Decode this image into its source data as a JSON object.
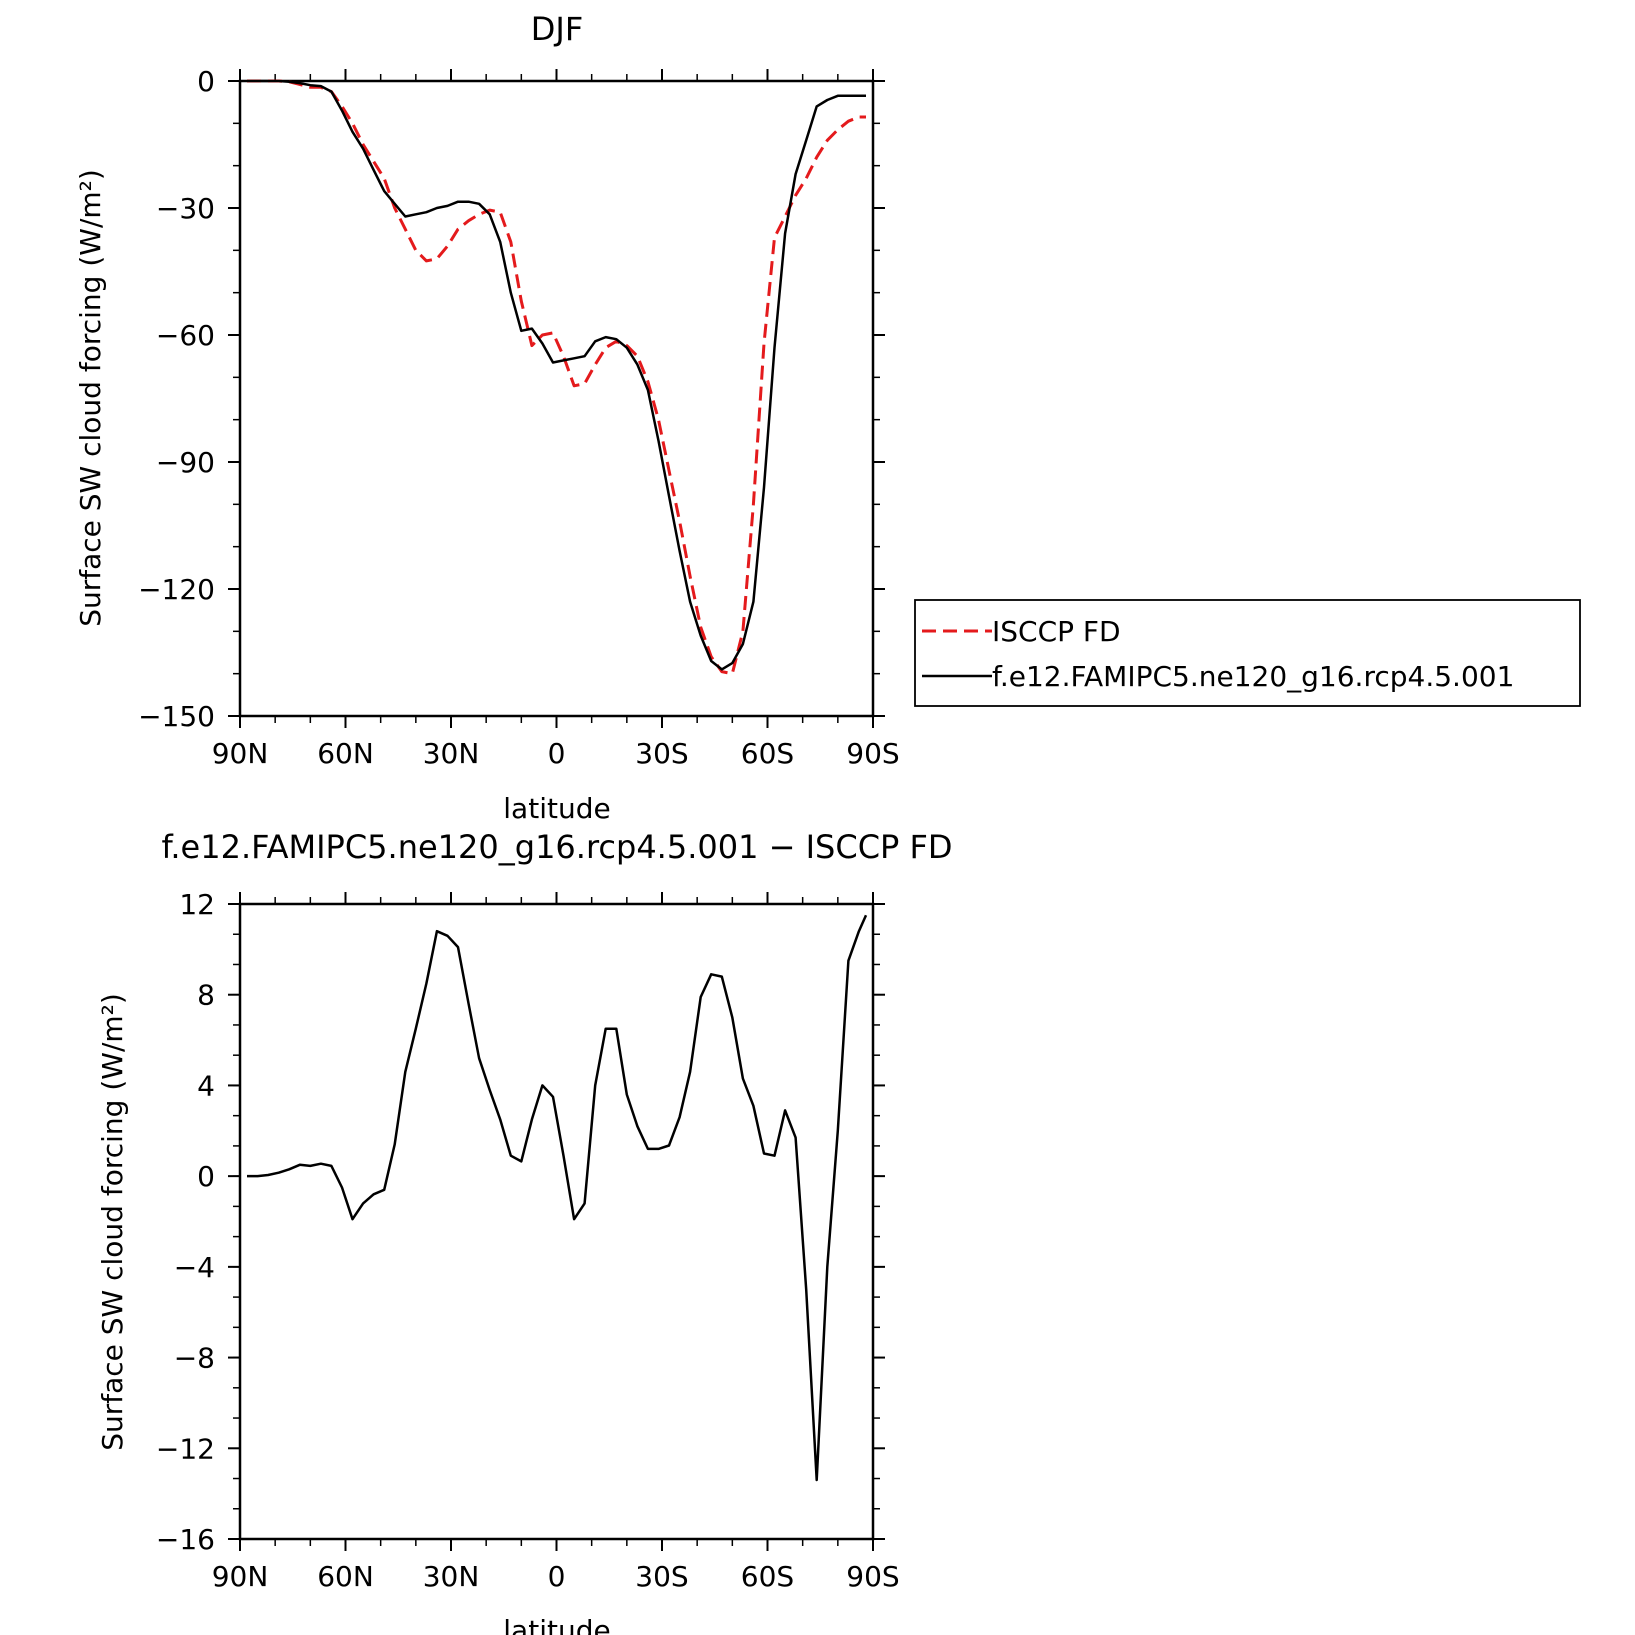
{
  "chart_data": [
    {
      "type": "line",
      "title": "DJF",
      "xlabel": "latitude",
      "ylabel": "Surface SW cloud forcing (W/m²)",
      "xlim": [
        90,
        -90
      ],
      "ylim": [
        -150,
        0
      ],
      "x_ticks": [
        90,
        60,
        30,
        0,
        -30,
        -60,
        -90
      ],
      "x_tick_labels": [
        "90N",
        "60N",
        "30N",
        "0",
        "30S",
        "60S",
        "90S"
      ],
      "y_ticks": [
        0,
        -30,
        -60,
        -90,
        -120,
        -150
      ],
      "y_tick_labels": [
        "0",
        "−30",
        "−60",
        "−90",
        "−120",
        "−150"
      ],
      "grid": false,
      "legend_position": "right",
      "series": [
        {
          "name": "ISCCP FD",
          "color": "#e41a1c",
          "dash": "dashed",
          "x": [
            88,
            85,
            82,
            79,
            76,
            73,
            70,
            67,
            64,
            61,
            58,
            55,
            52,
            49,
            46,
            43,
            40,
            37,
            34,
            31,
            28,
            25,
            22,
            19,
            16,
            13,
            10,
            7,
            4,
            1,
            -2,
            -5,
            -8,
            -11,
            -14,
            -17,
            -20,
            -23,
            -26,
            -29,
            -32,
            -35,
            -38,
            -41,
            -44,
            -47,
            -50,
            -53,
            -56,
            -59,
            -62,
            -65,
            -68,
            -71,
            -74,
            -77,
            -80,
            -83,
            -86,
            -88
          ],
          "y": [
            0,
            0,
            0,
            0,
            -0.2,
            -0.8,
            -1.5,
            -1.5,
            -2.5,
            -6,
            -10,
            -15,
            -19,
            -23,
            -30,
            -35,
            -40,
            -42.5,
            -42,
            -39,
            -35,
            -33,
            -31.5,
            -30.5,
            -31,
            -38,
            -52,
            -62.5,
            -60,
            -59.5,
            -65,
            -72,
            -71.5,
            -67,
            -63,
            -61.5,
            -62.5,
            -65,
            -71,
            -80,
            -92,
            -104,
            -117,
            -129,
            -136,
            -139.5,
            -140,
            -130,
            -100,
            -62,
            -37,
            -32,
            -27,
            -23,
            -18,
            -14,
            -11.5,
            -9.5,
            -8.5,
            -8.5
          ]
        },
        {
          "name": "f.e12.FAMIPC5.ne120_g16.rcp4.5.001",
          "color": "#000000",
          "dash": "solid",
          "x": [
            88,
            85,
            82,
            79,
            76,
            73,
            70,
            67,
            64,
            61,
            58,
            55,
            52,
            49,
            46,
            43,
            40,
            37,
            34,
            31,
            28,
            25,
            22,
            19,
            16,
            13,
            10,
            7,
            4,
            1,
            -2,
            -5,
            -8,
            -11,
            -14,
            -17,
            -20,
            -23,
            -26,
            -29,
            -32,
            -35,
            -38,
            -41,
            -44,
            -47,
            -50,
            -53,
            -56,
            -59,
            -62,
            -65,
            -68,
            -71,
            -74,
            -77,
            -80,
            -83,
            -86,
            -88
          ],
          "y": [
            0,
            0,
            0,
            0,
            -0.2,
            -0.5,
            -1,
            -1.2,
            -2.5,
            -7,
            -12,
            -16,
            -21,
            -26,
            -29,
            -32,
            -31.5,
            -31,
            -30,
            -29.5,
            -28.5,
            -28.5,
            -29,
            -31.5,
            -38,
            -50,
            -59,
            -58.5,
            -62,
            -66.5,
            -66,
            -65.5,
            -65,
            -61.5,
            -60.5,
            -61,
            -63,
            -67,
            -73,
            -85,
            -98,
            -111,
            -123,
            -131,
            -137,
            -139,
            -137.5,
            -133,
            -123,
            -96,
            -63,
            -36,
            -22,
            -14,
            -6,
            -4.5,
            -3.5,
            -3.5,
            -3.5,
            -3.5
          ]
        }
      ]
    },
    {
      "type": "line",
      "title": "f.e12.FAMIPC5.ne120_g16.rcp4.5.001 − ISCCP FD",
      "xlabel": "latitude",
      "ylabel": "Surface SW cloud forcing (W/m²)",
      "xlim": [
        90,
        -90
      ],
      "ylim": [
        -16,
        12
      ],
      "x_ticks": [
        90,
        60,
        30,
        0,
        -30,
        -60,
        -90
      ],
      "x_tick_labels": [
        "90N",
        "60N",
        "30N",
        "0",
        "30S",
        "60S",
        "90S"
      ],
      "y_ticks": [
        12,
        8,
        4,
        0,
        -4,
        -8,
        -12,
        -16
      ],
      "y_tick_labels": [
        "12",
        "8",
        "4",
        "0",
        "−4",
        "−8",
        "−12",
        "−16"
      ],
      "grid": false,
      "series": [
        {
          "color": "#000000",
          "dash": "solid",
          "x": [
            88,
            85,
            82,
            79,
            76,
            73,
            70,
            67,
            64,
            61,
            58,
            55,
            52,
            49,
            46,
            43,
            40,
            37,
            34,
            31,
            28,
            25,
            22,
            19,
            16,
            13,
            10,
            7,
            4,
            1,
            -2,
            -5,
            -8,
            -11,
            -14,
            -17,
            -20,
            -23,
            -26,
            -29,
            -32,
            -35,
            -38,
            -41,
            -44,
            -47,
            -50,
            -53,
            -56,
            -59,
            -62,
            -65,
            -68,
            -71,
            -74,
            -77,
            -80,
            -83,
            -86,
            -88
          ],
          "y": [
            0,
            0,
            0.05,
            0.15,
            0.3,
            0.5,
            0.45,
            0.55,
            0.45,
            -0.5,
            -1.9,
            -1.2,
            -0.8,
            -0.6,
            1.4,
            4.6,
            6.5,
            8.5,
            10.8,
            10.6,
            10.1,
            7.6,
            5.2,
            3.8,
            2.5,
            0.9,
            0.65,
            2.5,
            4.0,
            3.5,
            0.9,
            -1.9,
            -1.2,
            4.0,
            6.5,
            6.5,
            3.6,
            2.2,
            1.2,
            1.2,
            1.35,
            2.6,
            4.6,
            7.9,
            8.9,
            8.8,
            7.0,
            4.3,
            3.1,
            1.0,
            0.9,
            2.9,
            1.7,
            -5,
            -13.4,
            -4,
            2,
            9.5,
            10.8,
            11.5
          ]
        }
      ]
    }
  ]
}
